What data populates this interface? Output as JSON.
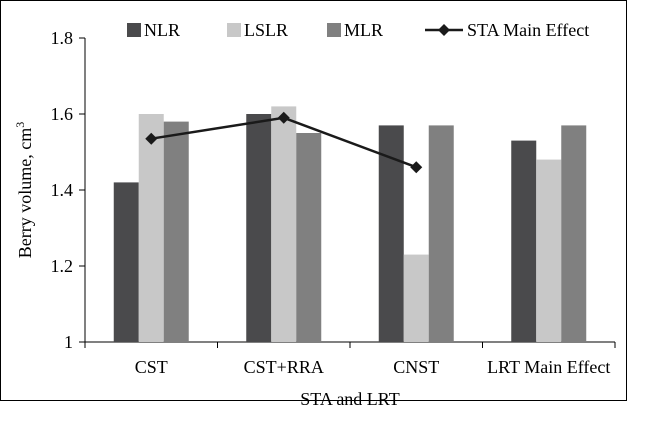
{
  "chart_data": {
    "type": "bar",
    "xlabel": "STA and LRT",
    "ylabel": "Berry volume, cm",
    "ylabel_superscript": "3",
    "ylim": [
      1,
      1.8
    ],
    "yticks": [
      "1",
      "1.2",
      "1.4",
      "1.6",
      "1.8"
    ],
    "categories": [
      "CST",
      "CST+RRA",
      "CNST",
      "LRT Main Effect"
    ],
    "series": [
      {
        "name": "NLR",
        "values": [
          1.42,
          1.6,
          1.57,
          1.53
        ],
        "color": "#4a4a4c"
      },
      {
        "name": "LSLR",
        "values": [
          1.6,
          1.62,
          1.23,
          1.48
        ],
        "color": "#c8c8c8"
      },
      {
        "name": "MLR",
        "values": [
          1.58,
          1.55,
          1.57,
          1.57
        ],
        "color": "#808080"
      }
    ],
    "line_series": {
      "name": "STA Main Effect",
      "values": [
        1.535,
        1.59,
        1.46
      ],
      "color": "#1a1a1a",
      "marker": "diamond"
    },
    "grid": false,
    "legend_position": "top"
  }
}
